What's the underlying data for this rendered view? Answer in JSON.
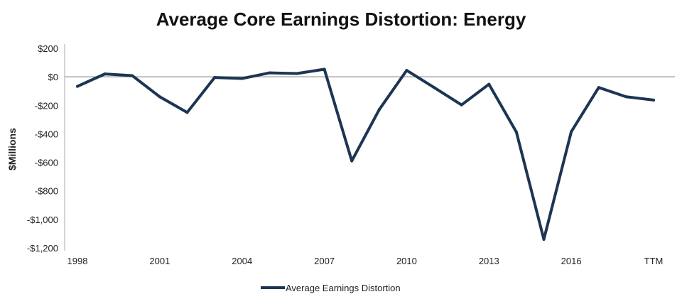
{
  "chart_data": {
    "type": "line",
    "title": "Average Core Earnings Distortion: Energy",
    "xlabel": "",
    "ylabel": "$Millions",
    "x": [
      "1998",
      "1999",
      "2000",
      "2001",
      "2002",
      "2003",
      "2004",
      "2005",
      "2006",
      "2007",
      "2008",
      "2009",
      "2010",
      "2011",
      "2012",
      "2013",
      "2014",
      "2015",
      "2016",
      "2017",
      "2018",
      "TTM"
    ],
    "x_tick_labels": [
      "1998",
      "2001",
      "2004",
      "2007",
      "2010",
      "2013",
      "2016",
      "TTM"
    ],
    "y_ticks": [
      200,
      0,
      -200,
      -400,
      -600,
      -800,
      -1000,
      -1200
    ],
    "y_tick_labels": [
      "$200",
      "$0",
      "-$200",
      "-$400",
      "-$600",
      "-$800",
      "-$1,000",
      "-$1,200"
    ],
    "ylim": [
      -1200,
      200
    ],
    "grid": false,
    "legend_position": "bottom",
    "series": [
      {
        "name": "Average Earnings Distortion",
        "color": "#1c3553",
        "values": [
          -67,
          20,
          8,
          -140,
          -250,
          -5,
          -12,
          28,
          23,
          53,
          -590,
          -230,
          45,
          -75,
          -197,
          -52,
          -388,
          -1140,
          -385,
          -75,
          -140,
          -163
        ]
      }
    ]
  }
}
